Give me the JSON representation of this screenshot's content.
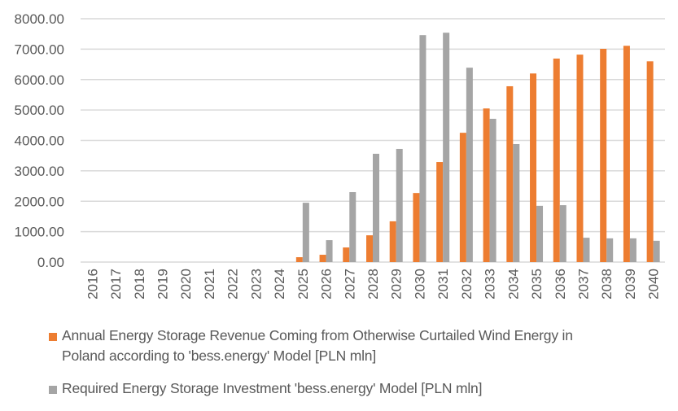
{
  "chart_data": {
    "type": "bar",
    "title": "",
    "xlabel": "",
    "ylabel": "",
    "ylim": [
      0,
      8000
    ],
    "yticks": [
      0,
      1000,
      2000,
      3000,
      4000,
      5000,
      6000,
      7000,
      8000
    ],
    "ytick_labels": [
      "0.00",
      "1000.00",
      "2000.00",
      "3000.00",
      "4000.00",
      "5000.00",
      "6000.00",
      "7000.00",
      "8000.00"
    ],
    "grid": true,
    "legend_position": "bottom",
    "categories": [
      "2016",
      "2017",
      "2018",
      "2019",
      "2020",
      "2021",
      "2022",
      "2023",
      "2024",
      "2025",
      "2026",
      "2027",
      "2028",
      "2029",
      "2030",
      "2031",
      "2032",
      "2033",
      "2034",
      "2035",
      "2036",
      "2037",
      "2038",
      "2039",
      "2040"
    ],
    "series": [
      {
        "name": "Annual Energy Storage Revenue Coming from Otherwise Curtailed Wind Energy in Poland according to 'bess.energy' Model [PLN mln]",
        "color": "#ED7D31",
        "values": [
          0,
          0,
          0,
          0,
          0,
          0,
          0,
          0,
          0,
          160,
          240,
          480,
          880,
          1340,
          2270,
          3290,
          4250,
          5050,
          5780,
          6200,
          6690,
          6820,
          7010,
          7110,
          6600
        ]
      },
      {
        "name": "Required Energy Storage Investment 'bess.energy' Model [PLN mln]",
        "color": "#A5A5A5",
        "values": [
          0,
          0,
          0,
          0,
          0,
          0,
          0,
          0,
          0,
          1950,
          720,
          2300,
          3560,
          3720,
          7460,
          7540,
          6390,
          4710,
          3880,
          1850,
          1870,
          800,
          780,
          780,
          700
        ]
      }
    ]
  },
  "legend": {
    "items": [
      {
        "label_line1": "Annual Energy Storage Revenue Coming from Otherwise Curtailed Wind Energy in",
        "label_line2": "Poland according to 'bess.energy' Model [PLN mln]",
        "color": "#ED7D31"
      },
      {
        "label_line1": "Required Energy Storage Investment 'bess.energy' Model [PLN mln]",
        "label_line2": "",
        "color": "#A5A5A5"
      }
    ]
  }
}
